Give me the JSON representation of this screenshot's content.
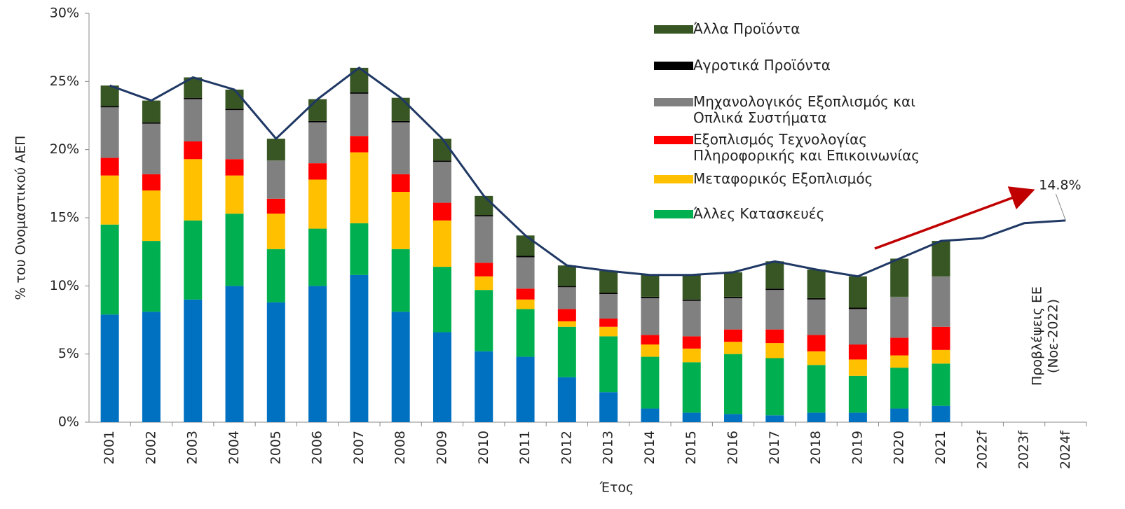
{
  "chart_data": {
    "type": "bar",
    "x_label": "Έτος",
    "y_label": "% του Ονομαστικού ΑΕΠ",
    "categories": [
      "2001",
      "2002",
      "2003",
      "2004",
      "2005",
      "2006",
      "2007",
      "2008",
      "2009",
      "2010",
      "2011",
      "2012",
      "2013",
      "2014",
      "2015",
      "2016",
      "2017",
      "2018",
      "2019",
      "2020",
      "2021",
      "2022f",
      "2023f",
      "2024f"
    ],
    "series": [
      {
        "color": "#0070c0",
        "values": [
          7.9,
          8.1,
          9.0,
          10.0,
          8.8,
          10.0,
          10.8,
          8.1,
          6.6,
          5.2,
          4.8,
          3.3,
          2.2,
          1.0,
          0.7,
          0.6,
          0.5,
          0.7,
          0.7,
          1.0,
          1.2,
          null,
          null,
          null
        ]
      },
      {
        "name": "Άλλες Κατασκευές",
        "color": "#00b050",
        "values": [
          6.6,
          5.2,
          5.8,
          5.3,
          3.9,
          4.2,
          3.8,
          4.6,
          4.8,
          4.5,
          3.5,
          3.7,
          4.1,
          3.8,
          3.7,
          4.4,
          4.2,
          3.5,
          2.7,
          3.0,
          3.1,
          null,
          null,
          null
        ]
      },
      {
        "name": "Μεταφορικός Εξοπλισμός",
        "color": "#ffc000",
        "values": [
          3.6,
          3.7,
          4.5,
          2.8,
          2.6,
          3.6,
          5.2,
          4.2,
          3.4,
          1.0,
          0.7,
          0.4,
          0.7,
          0.9,
          1.0,
          0.9,
          1.1,
          1.0,
          1.2,
          0.9,
          1.0,
          null,
          null,
          null
        ]
      },
      {
        "name": "Εξοπλισμός Τεχνολογίας\nΠληροφορικής και Επικοινωνίας",
        "color": "#ff0000",
        "values": [
          1.3,
          1.2,
          1.3,
          1.2,
          1.1,
          1.2,
          1.2,
          1.3,
          1.3,
          1.0,
          0.8,
          0.9,
          0.6,
          0.7,
          0.9,
          0.9,
          1.0,
          1.2,
          1.1,
          1.3,
          1.7,
          null,
          null,
          null
        ]
      },
      {
        "name": "Μηχανολογικός Εξοπλισμός και\nΟπλικά Συστήματα",
        "color": "#808080",
        "values": [
          3.7,
          3.7,
          3.1,
          3.6,
          2.8,
          3.0,
          3.1,
          3.8,
          3.0,
          3.4,
          2.3,
          1.6,
          1.8,
          2.7,
          2.6,
          2.3,
          2.9,
          2.6,
          2.6,
          3.0,
          3.7,
          null,
          null,
          null
        ]
      },
      {
        "name": "Αγροτικά Προϊόντα",
        "color": "#000000",
        "values": [
          0.1,
          0.1,
          0.1,
          0.1,
          0.0,
          0.1,
          0.1,
          0.1,
          0.1,
          0.1,
          0.1,
          0.1,
          0.1,
          0.1,
          0.1,
          0.1,
          0.1,
          0.1,
          0.1,
          0.0,
          0.0,
          null,
          null,
          null
        ]
      },
      {
        "name": "Άλλα Προϊόντα",
        "color": "#375623",
        "values": [
          1.5,
          1.6,
          1.5,
          1.4,
          1.6,
          1.6,
          1.8,
          1.7,
          1.6,
          1.4,
          1.5,
          1.5,
          1.6,
          1.6,
          1.8,
          1.8,
          2.0,
          2.1,
          2.3,
          2.8,
          2.6,
          null,
          null,
          null
        ]
      }
    ],
    "line": {
      "color": "#1f3864",
      "values": [
        24.7,
        23.6,
        25.3,
        24.4,
        20.8,
        23.7,
        26.0,
        23.8,
        20.8,
        16.6,
        13.7,
        11.5,
        11.1,
        10.8,
        10.8,
        11.0,
        11.8,
        11.2,
        10.7,
        12.0,
        13.3,
        13.5,
        14.6,
        14.8
      ],
      "value_labels": [
        null,
        null,
        null,
        null,
        null,
        null,
        null,
        null,
        null,
        null,
        null,
        null,
        null,
        null,
        null,
        null,
        null,
        null,
        null,
        null,
        null,
        null,
        null,
        "14.8%"
      ]
    },
    "annotations": [
      "Προβλέψεις ΕΕ",
      "(Νοε-2022)"
    ],
    "ylim": [
      0,
      30
    ],
    "yticks": [
      {
        "value": 0,
        "label": "0%"
      },
      {
        "value": 5,
        "label": "5%"
      },
      {
        "value": 10,
        "label": "10%"
      },
      {
        "value": 15,
        "label": "15%"
      },
      {
        "value": 20,
        "label": "20%"
      },
      {
        "value": 25,
        "label": "25%"
      },
      {
        "value": 30,
        "label": "30%"
      }
    ]
  }
}
